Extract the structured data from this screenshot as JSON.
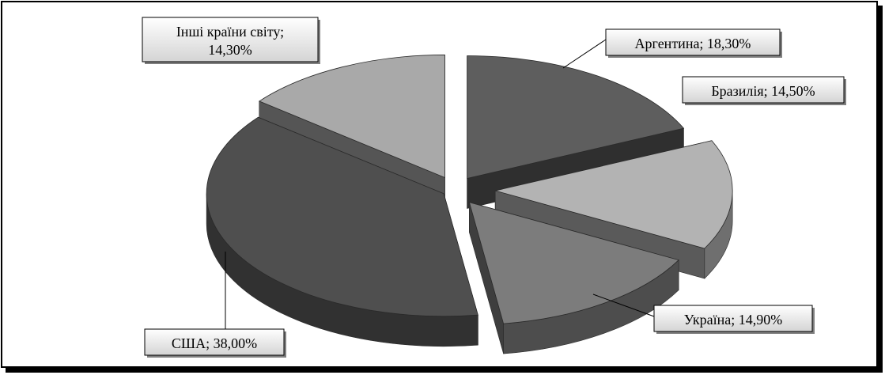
{
  "chart_data": {
    "type": "pie",
    "title": "",
    "slices": [
      {
        "label": "Аргентина",
        "value_text": "18,30%",
        "value": 18.3,
        "color": "#5e5e5e",
        "lines": [
          "Аргентина; 18,30%"
        ]
      },
      {
        "label": "Бразилія",
        "value_text": "14,50%",
        "value": 14.5,
        "color": "#b3b3b3",
        "lines": [
          "Бразилія; 14,50%"
        ]
      },
      {
        "label": "Україна",
        "value_text": "14,90%",
        "value": 14.9,
        "color": "#7c7c7c",
        "lines": [
          "Україна; 14,90%"
        ]
      },
      {
        "label": "США",
        "value_text": "38,00%",
        "value": 38.0,
        "color": "#4f4f4f",
        "lines": [
          "США; 38,00%"
        ]
      },
      {
        "label": "Інші країни світу",
        "value_text": "14,30%",
        "value": 14.3,
        "color": "#a9a9a9",
        "lines": [
          "Інші країни світу;",
          "14,30%"
        ]
      }
    ],
    "legend": "none",
    "style": "3d-exploded-pie"
  }
}
